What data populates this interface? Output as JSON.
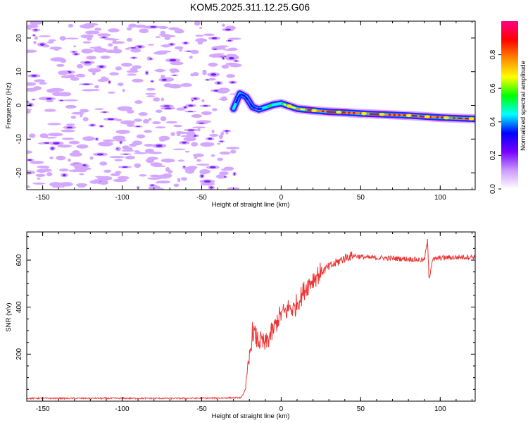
{
  "chart_data": [
    {
      "type": "heatmap",
      "title": "KOM5.2025.311.12.25.G06",
      "xlabel": "Height of straight line (km)",
      "ylabel": "Frequency (Hz)",
      "xlim": [
        -160,
        122
      ],
      "ylim": [
        -25,
        25
      ],
      "xticks": [
        -150,
        -100,
        -50,
        0,
        50,
        100
      ],
      "yticks": [
        -20,
        -10,
        0,
        10,
        20
      ],
      "colorbar": {
        "label": "Normalized spectral amplitude",
        "range": [
          0.0,
          1.0
        ],
        "ticks": [
          0.0,
          0.2,
          0.4,
          0.6,
          0.8
        ],
        "colors": [
          "#ffffff",
          "#cc99ff",
          "#7700ff",
          "#0000ff",
          "#00ffff",
          "#00ff00",
          "#ffff00",
          "#ff8800",
          "#ff0000",
          "#ff0088"
        ]
      },
      "noise_region_x": [
        -160,
        -28
      ],
      "signal_trace": {
        "x": [
          -30,
          -26,
          -22,
          -18,
          -14,
          -10,
          -5,
          0,
          10,
          20,
          30,
          40,
          50,
          60,
          70,
          80,
          90,
          100,
          110,
          122
        ],
        "freq": [
          -1.0,
          3.5,
          2.5,
          -0.5,
          -1.2,
          -0.6,
          0.2,
          0.6,
          -1.0,
          -1.5,
          -1.9,
          -2.1,
          -2.4,
          -2.6,
          -2.8,
          -3.0,
          -3.3,
          -3.6,
          -3.8,
          -4.0
        ],
        "amplitude": [
          0.4,
          0.45,
          0.3,
          0.3,
          0.35,
          0.45,
          0.5,
          0.55,
          0.7,
          0.78,
          0.85,
          0.85,
          0.85,
          0.85,
          0.85,
          0.85,
          0.85,
          0.85,
          0.85,
          0.85
        ]
      }
    },
    {
      "type": "line",
      "xlabel": "Height of straight line (km)",
      "ylabel": "SNR (v/v)",
      "xlim": [
        -160,
        122
      ],
      "ylim": [
        0,
        720
      ],
      "xticks": [
        -150,
        -100,
        -50,
        0,
        50,
        100
      ],
      "yticks": [
        200,
        400,
        600
      ],
      "color": "#ee3333",
      "series": [
        {
          "name": "SNR",
          "x": [
            -160,
            -140,
            -120,
            -100,
            -80,
            -60,
            -40,
            -25,
            -22,
            -20,
            -18,
            -15,
            -12,
            -10,
            -7,
            -5,
            -2,
            0,
            3,
            5,
            8,
            10,
            13,
            15,
            20,
            25,
            30,
            35,
            40,
            45,
            50,
            55,
            60,
            70,
            80,
            90,
            92,
            93,
            95,
            100,
            110,
            122
          ],
          "values": [
            12,
            12,
            12,
            12,
            12,
            12,
            13,
            15,
            60,
            180,
            300,
            260,
            250,
            240,
            280,
            300,
            350,
            370,
            380,
            400,
            390,
            420,
            450,
            480,
            520,
            550,
            570,
            590,
            610,
            620,
            615,
            610,
            610,
            608,
            605,
            600,
            680,
            520,
            600,
            610,
            612,
            615
          ]
        }
      ]
    }
  ]
}
